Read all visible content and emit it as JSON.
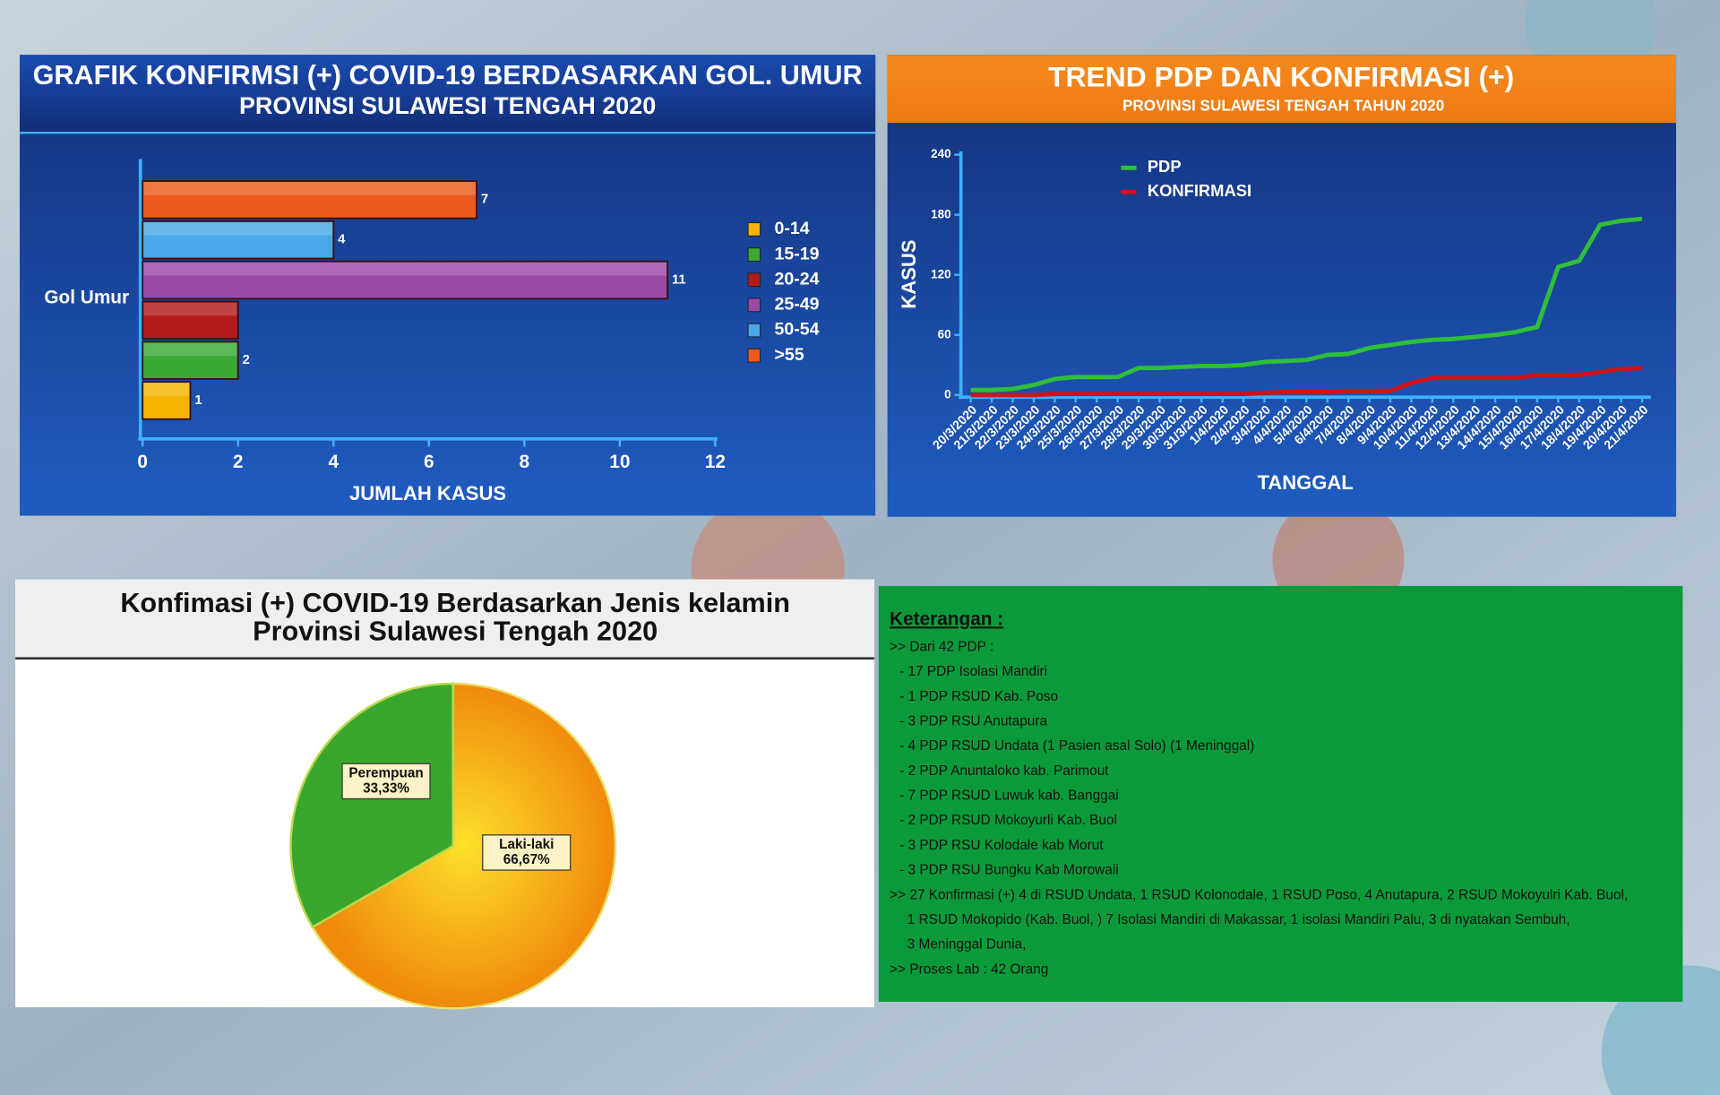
{
  "chart_data": [
    {
      "type": "bar",
      "orientation": "horizontal",
      "title": "GRAFIK KONFIRMSI (+) COVID-19 BERDASARKAN GOL. UMUR",
      "subtitle": "PROVINSI SULAWESI TENGAH 2020",
      "y_label": "Gol Umur",
      "x_label": "JUMLAH KASUS",
      "categories": [
        "0-14",
        "15-19",
        "20-24",
        "25-49",
        "50-54",
        ">55"
      ],
      "values": [
        1,
        2,
        2,
        11,
        4,
        7
      ],
      "value_labels": [
        "1",
        "2",
        null,
        "11",
        "4",
        "7"
      ],
      "colors": [
        "#f5b400",
        "#3aaa35",
        "#b31b1b",
        "#9a4aa6",
        "#4aa8e8",
        "#ec5a1c"
      ],
      "xlim": [
        0,
        12
      ],
      "xticks": [
        0,
        2,
        4,
        6,
        8,
        10,
        12
      ],
      "legend": "right"
    },
    {
      "type": "line",
      "title": "TREND PDP DAN KONFIRMASI (+)",
      "subtitle": "PROVINSI SULAWESI TENGAH TAHUN 2020",
      "y_label": "KASUS",
      "x_label": "TANGGAL",
      "categories": [
        "20/3/2020",
        "21/3/2020",
        "22/3/2020",
        "23/3/2020",
        "24/3/2020",
        "25/3/2020",
        "26/3/2020",
        "27/3/2020",
        "28/3/2020",
        "29/3/2020",
        "30/3/2020",
        "31/3/2020",
        "1/4/2020",
        "2/4/2020",
        "3/4/2020",
        "4/4/2020",
        "5/4/2020",
        "6/4/2020",
        "7/4/2020",
        "8/4/2020",
        "9/4/2020",
        "10/4/2020",
        "11/4/2020",
        "12/4/2020",
        "13/4/2020",
        "14/4/2020",
        "15/4/2020",
        "16/4/2020",
        "17/4/2020",
        "18/4/2020",
        "19/4/2020",
        "20/4/2020",
        "21/4/2020"
      ],
      "series": [
        {
          "name": "PDP",
          "color": "#2fbf3a",
          "values": [
            5,
            5,
            6,
            10,
            16,
            18,
            18,
            18,
            27,
            27,
            28,
            29,
            29,
            30,
            33,
            34,
            35,
            40,
            41,
            47,
            50,
            53,
            55,
            56,
            58,
            60,
            63,
            68,
            128,
            134,
            170,
            174,
            176
          ]
        },
        {
          "name": "KONFIRMASI",
          "color": "#d0121b",
          "values": [
            0,
            0,
            0,
            0,
            1,
            1,
            1,
            1,
            1,
            1,
            1,
            1,
            1,
            1,
            2,
            3,
            3,
            3,
            4,
            4,
            4,
            12,
            17,
            17,
            17,
            17,
            17,
            20,
            20,
            20,
            23,
            26,
            27
          ]
        }
      ],
      "ylim": [
        0,
        240
      ],
      "yticks": [
        0,
        60,
        120,
        180,
        240
      ],
      "legend": "top-left"
    },
    {
      "type": "pie",
      "title": "Konfimasi (+) COVID-19 Berdasarkan Jenis kelamin",
      "subtitle": "Provinsi Sulawesi Tengah 2020",
      "categories": [
        "Laki-laki",
        "Perempuan"
      ],
      "values": [
        66.67,
        33.33
      ],
      "value_labels": [
        "66,67%",
        "33,33%"
      ],
      "colors": [
        "#f39a0e",
        "#3aa62e"
      ]
    }
  ],
  "notes": {
    "heading": "Keterangan :",
    "lines": [
      ">> Dari 42 PDP  :",
      "- 17 PDP Isolasi Mandiri",
      "- 1 PDP RSUD Kab. Poso",
      "- 3 PDP RSU Anutapura",
      "- 4 PDP RSUD Undata (1 Pasien asal Solo) (1 Meninggal)",
      "- 2 PDP Anuntaloko kab. Parimout",
      "- 7 PDP RSUD Luwuk kab. Banggai",
      "- 2 PDP RSUD Mokoyurli Kab. Buol",
      "- 3 PDP RSU Kolodale kab Morut",
      "- 3 PDP RSU Bungku Kab Morowali",
      ">> 27 Konfirmasi (+) 4 di RSUD Undata, 1 RSUD Kolonodale, 1 RSUD Poso, 4 Anutapura, 2 RSUD Mokoyulri Kab. Buol,",
      "1 RSUD Mokopido (Kab. Buol, ) 7 Isolasi Mandiri di Makassar, 1 isolasi Mandiri Palu, 3 di nyatakan Sembuh,",
      "3 Meninggal Dunia,",
      ">> Proses Lab :  42 Orang"
    ]
  }
}
